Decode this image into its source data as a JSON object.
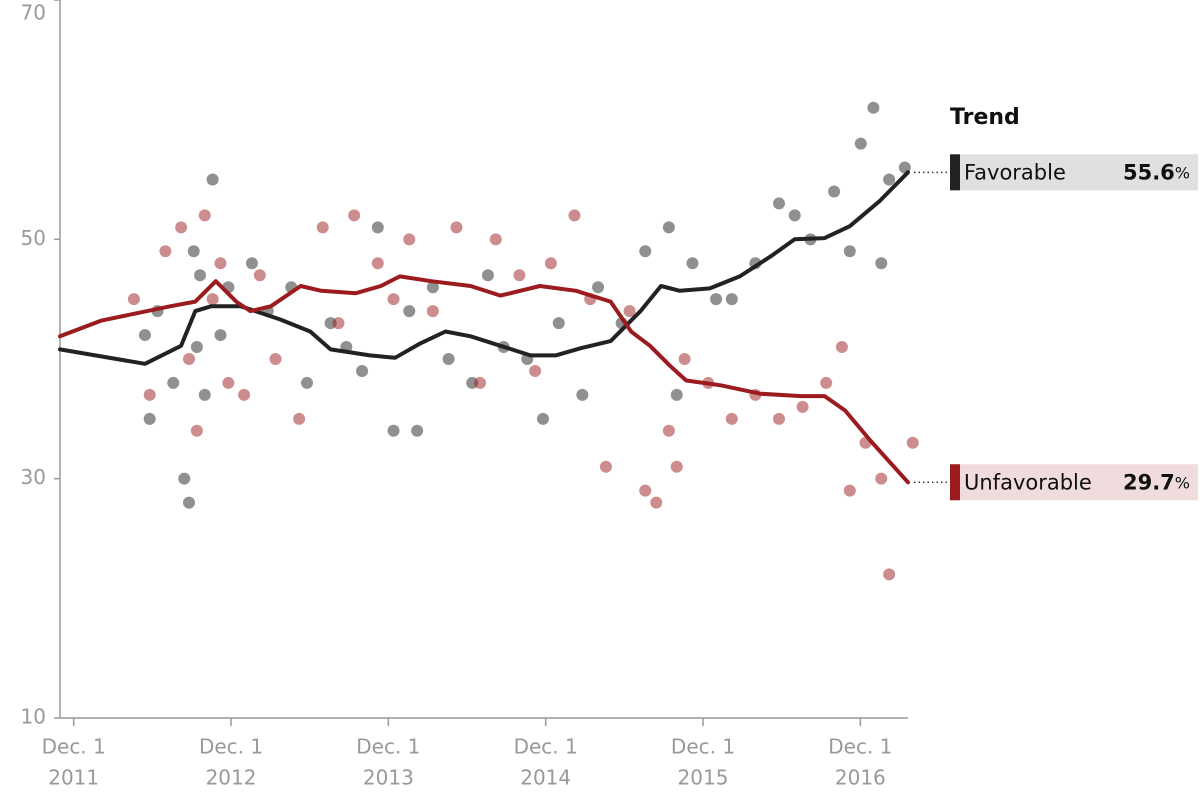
{
  "chart_data": {
    "type": "line",
    "legend_title": "Trend",
    "xlim": [
      2011.83,
      2017.22
    ],
    "ylim": [
      10,
      70
    ],
    "yticks": [
      10,
      30,
      50,
      70
    ],
    "xticks": [
      {
        "value": 2011.917,
        "label": "Dec. 1",
        "year": "2011"
      },
      {
        "value": 2012.917,
        "label": "Dec. 1",
        "year": "2012"
      },
      {
        "value": 2013.917,
        "label": "Dec. 1",
        "year": "2013"
      },
      {
        "value": 2014.917,
        "label": "Dec. 1",
        "year": "2014"
      },
      {
        "value": 2015.917,
        "label": "Dec. 1",
        "year": "2015"
      },
      {
        "value": 2016.917,
        "label": "Dec. 1",
        "year": "2016"
      }
    ],
    "series": [
      {
        "name": "Favorable",
        "color": "#222222",
        "box_color": "#e0e0e0",
        "label_value": 55.6,
        "label_unit": "%",
        "x": [
          2011.83,
          2012.37,
          2012.6,
          2012.69,
          2012.79,
          2012.98,
          2013.23,
          2013.42,
          2013.55,
          2013.8,
          2013.96,
          2014.12,
          2014.28,
          2014.44,
          2014.63,
          2014.82,
          2014.98,
          2015.14,
          2015.33,
          2015.52,
          2015.65,
          2015.77,
          2015.96,
          2016.15,
          2016.35,
          2016.5,
          2016.69,
          2016.85,
          2017.04,
          2017.22
        ],
        "values": [
          40.8,
          39.6,
          41.1,
          44,
          44.4,
          44.4,
          43.3,
          42.3,
          40.8,
          40.3,
          40.1,
          41.3,
          42.3,
          41.9,
          41.1,
          40.3,
          40.3,
          40.9,
          41.5,
          44,
          46.1,
          45.7,
          45.9,
          46.9,
          48.6,
          50,
          50.1,
          51.1,
          53.2,
          55.6
        ],
        "points_x": [
          2012.37,
          2012.4,
          2012.45,
          2012.55,
          2012.62,
          2012.65,
          2012.68,
          2012.7,
          2012.72,
          2012.75,
          2012.8,
          2012.85,
          2012.9,
          2013.05,
          2013.15,
          2013.3,
          2013.4,
          2013.55,
          2013.65,
          2013.75,
          2013.85,
          2013.95,
          2014.05,
          2014.1,
          2014.2,
          2014.3,
          2014.45,
          2014.55,
          2014.65,
          2014.8,
          2014.9,
          2015.0,
          2015.15,
          2015.25,
          2015.4,
          2015.55,
          2015.7,
          2015.75,
          2015.85,
          2016.0,
          2016.1,
          2016.25,
          2016.4,
          2016.5,
          2016.6,
          2016.75,
          2016.85,
          2016.92,
          2017.0,
          2017.05,
          2017.1,
          2017.2
        ],
        "points": [
          42,
          35,
          44,
          38,
          30,
          28,
          49,
          41,
          47,
          37,
          55,
          42,
          46,
          48,
          44,
          46,
          38,
          43,
          41,
          39,
          51,
          34,
          44,
          34,
          46,
          40,
          38,
          47,
          41,
          40,
          35,
          43,
          37,
          46,
          43,
          49,
          51,
          37,
          48,
          45,
          45,
          48,
          53,
          52,
          50,
          54,
          49,
          58,
          61,
          48,
          55,
          56
        ]
      },
      {
        "name": "Unfavorable",
        "color": "#9b1b1e",
        "box_color": "#f0dcdc",
        "label_value": 29.7,
        "label_unit": "%",
        "x": [
          2011.83,
          2012.09,
          2012.53,
          2012.69,
          2012.82,
          2012.95,
          2013.04,
          2013.17,
          2013.36,
          2013.49,
          2013.71,
          2013.87,
          2013.99,
          2014.19,
          2014.44,
          2014.63,
          2014.88,
          2015.11,
          2015.33,
          2015.46,
          2015.58,
          2015.71,
          2015.81,
          2016.03,
          2016.28,
          2016.54,
          2016.69,
          2016.82,
          2016.98,
          2017.22
        ],
        "values": [
          41.9,
          43.2,
          44.4,
          44.8,
          46.5,
          44.8,
          44,
          44.4,
          46.1,
          45.7,
          45.5,
          46.1,
          46.9,
          46.5,
          46.1,
          45.3,
          46.1,
          45.7,
          44.8,
          42.3,
          41.1,
          39.4,
          38.2,
          37.8,
          37.1,
          36.9,
          36.9,
          35.7,
          33.2,
          29.7
        ],
        "points_x": [
          2012.3,
          2012.4,
          2012.5,
          2012.6,
          2012.65,
          2012.7,
          2012.75,
          2012.8,
          2012.85,
          2012.9,
          2013.0,
          2013.1,
          2013.2,
          2013.35,
          2013.5,
          2013.6,
          2013.7,
          2013.85,
          2013.95,
          2014.05,
          2014.2,
          2014.35,
          2014.5,
          2014.6,
          2014.75,
          2014.85,
          2014.95,
          2015.1,
          2015.2,
          2015.3,
          2015.45,
          2015.55,
          2015.62,
          2015.7,
          2015.75,
          2015.8,
          2015.95,
          2016.1,
          2016.25,
          2016.4,
          2016.55,
          2016.7,
          2016.8,
          2016.85,
          2016.95,
          2017.05,
          2017.1,
          2017.25
        ],
        "points": [
          45,
          37,
          49,
          51,
          40,
          34,
          52,
          45,
          48,
          38,
          37,
          47,
          40,
          35,
          51,
          43,
          52,
          48,
          45,
          50,
          44,
          51,
          38,
          50,
          47,
          39,
          48,
          52,
          45,
          31,
          44,
          29,
          28,
          34,
          31,
          40,
          38,
          35,
          37,
          35,
          36,
          38,
          41,
          29,
          33,
          30,
          22,
          33
        ]
      }
    ]
  }
}
